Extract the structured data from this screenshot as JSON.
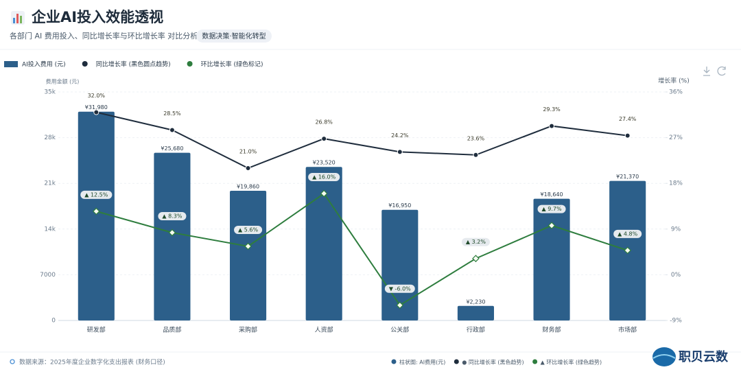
{
  "chart_data": {
    "type": "bar",
    "title": "企业AI投入效能透视",
    "subtitle": "各部门 AI 费用投入、同比增长率与环比增长率 对比分析",
    "badge": "数据决策·智能化转型",
    "y_label": "费用金额 (元)",
    "y2_label": "增长率 (%)",
    "categories": [
      "研发部",
      "品质部",
      "采购部",
      "人资部",
      "公关部",
      "行政部",
      "财务部",
      "市场部"
    ],
    "series": [
      {
        "name": "AI投入费用 (元)",
        "type": "bar",
        "color": "#2c5f8a",
        "values": [
          31980,
          25680,
          19860,
          23520,
          16950,
          2230,
          18640,
          21370
        ],
        "value_labels": [
          "¥31,980",
          "¥25,680",
          "¥19,860",
          "¥23,520",
          "¥16,950",
          "¥2,230",
          "¥18,640",
          "¥21,370"
        ]
      },
      {
        "name": "同比增长率 (黑色圆点趋势)",
        "type": "line",
        "axis": "y2",
        "color": "#1f2d3d",
        "values": [
          32.0,
          28.5,
          21.0,
          26.8,
          24.2,
          23.6,
          29.3,
          27.4
        ],
        "value_labels": [
          "32.0%",
          "28.5%",
          "21.0%",
          "26.8%",
          "24.2%",
          "23.6%",
          "29.3%",
          "27.4%"
        ]
      },
      {
        "name": "环比增长率 (绿色标记)",
        "type": "line",
        "axis": "y2",
        "color": "#2e7d3e",
        "values": [
          12.5,
          8.3,
          5.6,
          16.0,
          -6.0,
          3.2,
          9.7,
          4.8
        ],
        "value_labels": [
          "▲ 12.5%",
          "▲ 8.3%",
          "▲ 5.6%",
          "▲ 16.0%",
          "▼ -6.0%",
          "▲ 3.2%",
          "▲ 9.7%",
          "▲ 4.8%"
        ]
      }
    ],
    "ylim": [
      0,
      35000
    ],
    "yticks": [
      0,
      7000,
      {
        "value": 14000,
        "label": "14k"
      },
      {
        "value": 21000,
        "label": "21k"
      },
      {
        "value": 28000,
        "label": "28k"
      },
      {
        "value": 35000,
        "label": "35k"
      }
    ],
    "y2lim": [
      -9,
      36
    ],
    "y2ticks": [
      {
        "value": -9,
        "label": "-9%"
      },
      {
        "value": 0,
        "label": "0%"
      },
      {
        "value": 9,
        "label": "9%"
      },
      {
        "value": 18,
        "label": "18%"
      },
      {
        "value": 27,
        "label": "27%"
      },
      {
        "value": 36,
        "label": "36%"
      }
    ],
    "grid": true
  },
  "footer": {
    "source": "数据来源：2025年度企业数字化支出报表 (财务口径)",
    "legend": [
      "柱状图: AI费用(元)",
      "● 同比增长率 (黑色趋势)",
      "▲ 环比增长率 (绿色趋势)"
    ],
    "brand": "职贝云数"
  }
}
